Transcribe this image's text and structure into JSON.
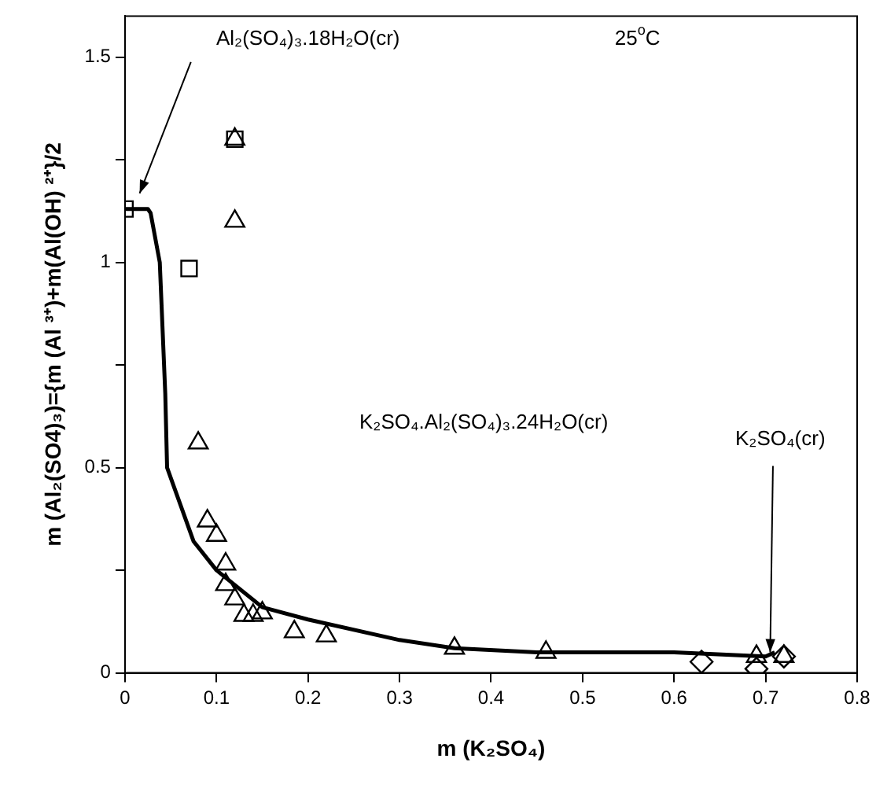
{
  "chart_data": {
    "type": "scatter",
    "xlabel": "m (K₂SO₄)",
    "ylabel": "m (Al₂(SO4)₃)={m (Al ³⁺)+m(Al(OH) ²⁺}/2",
    "xlim": [
      0,
      0.8
    ],
    "xticks": [
      0,
      0.1,
      0.2,
      0.3,
      0.4,
      0.5,
      0.6,
      0.7,
      0.8
    ],
    "ylim": [
      0,
      1.6
    ],
    "yticks": [
      0,
      {
        "value": 0.25,
        "label": null
      },
      0.5,
      {
        "value": 0.75,
        "label": null
      },
      1,
      {
        "value": 1.25,
        "label": null
      },
      1.5
    ],
    "grid": false,
    "legend": false,
    "series": [
      {
        "type": "line",
        "color": "#000000",
        "marker": "none",
        "line_style": "solid",
        "x": [
          0,
          0.025,
          0.028,
          0.038,
          0.044,
          0.046,
          0.054,
          0.075,
          0.1,
          0.15,
          0.2,
          0.3,
          0.36,
          0.45,
          0.6,
          0.7,
          0.71
        ],
        "values": [
          1.13,
          1.13,
          1.12,
          1.0,
          0.68,
          0.5,
          0.45,
          0.32,
          0.25,
          0.16,
          0.13,
          0.08,
          0.06,
          0.05,
          0.05,
          0.04,
          0.05
        ]
      },
      {
        "type": "scatter",
        "color": "#000000",
        "marker": "triangle",
        "x": [
          0.12,
          0.12,
          0.08,
          0.09,
          0.1,
          0.11,
          0.11,
          0.12,
          0.13,
          0.14,
          0.15,
          0.185,
          0.22,
          0.36,
          0.46,
          0.69,
          0.72
        ],
        "values": [
          1.3,
          1.1,
          0.56,
          0.37,
          0.335,
          0.265,
          0.215,
          0.18,
          0.14,
          0.14,
          0.146,
          0.1,
          0.09,
          0.06,
          0.05,
          0.04,
          0.04
        ]
      },
      {
        "type": "scatter",
        "color": "#000000",
        "marker": "square",
        "x": [
          0,
          0.07,
          0.12
        ],
        "values": [
          1.13,
          0.985,
          1.3
        ]
      },
      {
        "type": "scatter",
        "color": "#000000",
        "marker": "diamond",
        "x": [
          0.63,
          0.69,
          0.72
        ],
        "values": [
          0.027,
          0.01,
          0.04
        ]
      }
    ],
    "annotations": [
      "Al₂(SO₄)₃.18H₂O(cr)",
      "25$^{o}$C",
      "K₂SO₄.Al₂(SO₄)₃.24H₂O(cr)",
      {
        "text": "K₂SO₄(cr)",
        "x": 0.705,
        "y": 0.05
      }
    ]
  }
}
